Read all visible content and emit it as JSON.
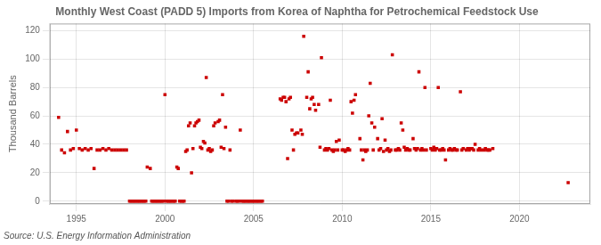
{
  "chart_data": {
    "type": "scatter",
    "title": "Monthly West Coast (PADD 5) Imports from Korea of Naphtha for Petrochemical Feedstock Use",
    "ylabel": "Thousand Barrels",
    "annotations": [
      "Source: U.S. Energy Information Administration"
    ],
    "color": "#cc0000",
    "marker": "square",
    "grid": true,
    "xlim": [
      1993.5,
      2024.0
    ],
    "ylim": [
      -2,
      125
    ],
    "xticks": [
      1995,
      2000,
      2005,
      2010,
      2015,
      2020
    ],
    "yticks": [
      0,
      20,
      40,
      60,
      80,
      100,
      120
    ],
    "x": [
      1994.0,
      1994.17,
      1994.33,
      1994.5,
      1994.67,
      1994.83,
      1995.0,
      1995.17,
      1995.33,
      1995.5,
      1995.67,
      1995.83,
      1996.0,
      1996.17,
      1996.33,
      1996.5,
      1996.67,
      1996.83,
      1997.0,
      1997.17,
      1997.33,
      1997.5,
      1997.67,
      1997.83,
      1998.0,
      1998.08,
      1998.17,
      1998.25,
      1998.33,
      1998.42,
      1998.5,
      1998.58,
      1998.67,
      1998.75,
      1998.83,
      1998.92,
      1999.0,
      1999.17,
      1999.25,
      1999.33,
      1999.42,
      1999.5,
      1999.58,
      1999.67,
      1999.75,
      1999.83,
      1999.92,
      2000.0,
      2000.08,
      2000.17,
      2000.25,
      2000.33,
      2000.42,
      2000.5,
      2000.58,
      2000.67,
      2000.75,
      2000.83,
      2000.92,
      2001.0,
      2001.08,
      2001.17,
      2001.25,
      2001.33,
      2001.42,
      2001.5,
      2001.58,
      2001.67,
      2001.75,
      2001.83,
      2001.92,
      2002.0,
      2002.08,
      2002.17,
      2002.25,
      2002.33,
      2002.42,
      2002.5,
      2002.58,
      2002.67,
      2002.75,
      2002.83,
      2003.0,
      2003.08,
      2003.17,
      2003.25,
      2003.33,
      2003.42,
      2003.5,
      2003.58,
      2003.67,
      2003.75,
      2003.83,
      2004.0,
      2004.08,
      2004.17,
      2004.25,
      2004.33,
      2004.42,
      2004.5,
      2004.58,
      2004.67,
      2004.75,
      2004.83,
      2004.92,
      2005.0,
      2005.08,
      2005.17,
      2005.25,
      2005.33,
      2005.42,
      2005.5,
      2006.5,
      2006.58,
      2006.67,
      2006.75,
      2006.83,
      2006.92,
      2007.0,
      2007.08,
      2007.17,
      2007.25,
      2007.33,
      2007.42,
      2007.5,
      2007.67,
      2007.75,
      2007.83,
      2008.0,
      2008.08,
      2008.17,
      2008.25,
      2008.33,
      2008.42,
      2008.5,
      2008.67,
      2008.75,
      2008.83,
      2009.0,
      2009.08,
      2009.17,
      2009.25,
      2009.33,
      2009.42,
      2009.5,
      2009.58,
      2009.67,
      2009.75,
      2009.83,
      2010.0,
      2010.08,
      2010.17,
      2010.25,
      2010.33,
      2010.42,
      2010.5,
      2010.58,
      2010.67,
      2010.75,
      2011.0,
      2011.08,
      2011.17,
      2011.25,
      2011.33,
      2011.42,
      2011.5,
      2011.58,
      2011.67,
      2011.75,
      2011.83,
      2012.0,
      2012.08,
      2012.17,
      2012.25,
      2012.33,
      2012.42,
      2012.5,
      2012.58,
      2012.67,
      2012.75,
      2012.83,
      2013.0,
      2013.08,
      2013.17,
      2013.25,
      2013.33,
      2013.42,
      2013.5,
      2013.58,
      2013.67,
      2013.75,
      2013.83,
      2014.0,
      2014.08,
      2014.17,
      2014.25,
      2014.33,
      2014.42,
      2014.5,
      2014.58,
      2014.67,
      2014.75,
      2015.0,
      2015.08,
      2015.17,
      2015.25,
      2015.33,
      2015.42,
      2015.5,
      2015.58,
      2015.67,
      2015.75,
      2015.83,
      2016.0,
      2016.08,
      2016.17,
      2016.25,
      2016.33,
      2016.42,
      2016.5,
      2016.67,
      2016.75,
      2016.83,
      2017.0,
      2017.08,
      2017.17,
      2017.25,
      2017.33,
      2017.42,
      2017.5,
      2017.67,
      2017.75,
      2017.83,
      2018.0,
      2018.08,
      2018.17,
      2018.25,
      2018.33,
      2018.5,
      2022.75
    ],
    "values": [
      59,
      36,
      34,
      49,
      36,
      37,
      50,
      37,
      36,
      37,
      36,
      37,
      23,
      36,
      36,
      37,
      36,
      37,
      36,
      36,
      36,
      36,
      36,
      36,
      0,
      0,
      0,
      0,
      0,
      0,
      0,
      0,
      0,
      0,
      0,
      0,
      24,
      23,
      0,
      0,
      0,
      0,
      0,
      0,
      0,
      0,
      0,
      75,
      0,
      0,
      0,
      0,
      0,
      0,
      0,
      24,
      23,
      0,
      0,
      0,
      0,
      35,
      36,
      53,
      55,
      20,
      37,
      53,
      55,
      56,
      57,
      38,
      37,
      42,
      41,
      87,
      36,
      37,
      35,
      36,
      53,
      55,
      56,
      57,
      38,
      75,
      37,
      52,
      0,
      0,
      36,
      0,
      0,
      0,
      0,
      0,
      50,
      0,
      0,
      0,
      0,
      0,
      0,
      0,
      0,
      0,
      0,
      0,
      0,
      0,
      0,
      0,
      72,
      71,
      73,
      73,
      70,
      30,
      72,
      73,
      50,
      36,
      47,
      48,
      48,
      50,
      47,
      116,
      73,
      91,
      65,
      72,
      73,
      68,
      64,
      68,
      38,
      101,
      36,
      37,
      36,
      37,
      71,
      36,
      35,
      36,
      42,
      36,
      43,
      36,
      36,
      35,
      36,
      37,
      36,
      70,
      62,
      71,
      75,
      44,
      36,
      29,
      36,
      35,
      36,
      60,
      83,
      55,
      36,
      52,
      44,
      36,
      37,
      58,
      35,
      43,
      36,
      37,
      35,
      36,
      103,
      36,
      36,
      37,
      36,
      55,
      50,
      38,
      36,
      37,
      36,
      36,
      44,
      37,
      36,
      37,
      91,
      36,
      37,
      36,
      80,
      36,
      37,
      36,
      38,
      36,
      37,
      80,
      36,
      36,
      37,
      36,
      29,
      36,
      37,
      36,
      36,
      37,
      36,
      36,
      77,
      36,
      37,
      36,
      37,
      36,
      37,
      37,
      36,
      40,
      36,
      37,
      36,
      36,
      37,
      36,
      36,
      36,
      37,
      13
    ]
  }
}
